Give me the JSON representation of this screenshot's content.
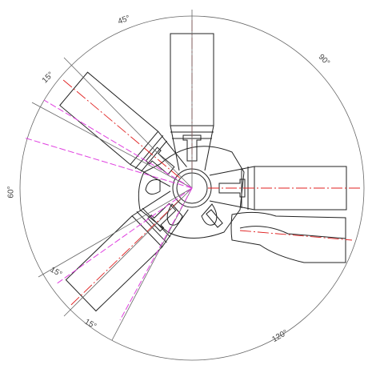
{
  "angle_labels": [
    "45°",
    "90°",
    "15°",
    "60°",
    "15°",
    "15°",
    "120°"
  ]
}
